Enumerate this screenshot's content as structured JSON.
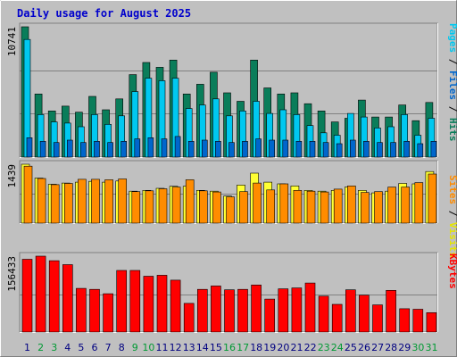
{
  "title": "Daily usage for August 2025",
  "colors": {
    "frame": "#c0c0c0",
    "panel": "#c0c0c0",
    "grid": "#808080",
    "title": "#0000cc",
    "hits": "#0a7d5a",
    "files": "#00c8f0",
    "pages": "#0066cc",
    "visits": "#ffff33",
    "sites": "#ff8c00",
    "kbytes": "#ff0000",
    "weekday": "#000080",
    "weekend": "#009933"
  },
  "chart_data": {
    "type": "bar",
    "categories": [
      "1",
      "2",
      "3",
      "4",
      "5",
      "6",
      "7",
      "8",
      "9",
      "10",
      "11",
      "12",
      "13",
      "14",
      "15",
      "16",
      "17",
      "18",
      "19",
      "20",
      "21",
      "22",
      "23",
      "24",
      "25",
      "26",
      "27",
      "28",
      "29",
      "30",
      "31"
    ],
    "weekend_days": [
      2,
      3,
      9,
      10,
      16,
      17,
      23,
      24,
      30,
      31
    ],
    "panels": [
      {
        "id": "traffic",
        "ymax_label": "10741",
        "ymax": 10741,
        "legend": [
          {
            "text": "Pages",
            "color": "#00c8f0"
          },
          {
            "text": " / ",
            "color": "#000000"
          },
          {
            "text": "Files",
            "color": "#0066cc"
          },
          {
            "text": " / ",
            "color": "#000000"
          },
          {
            "text": "Hits",
            "color": "#0a7d5a"
          }
        ],
        "series": [
          {
            "name": "Hits",
            "color": "#0a7d5a",
            "values": [
              10741,
              5200,
              3800,
              4200,
              3700,
              5000,
              3900,
              4800,
              6800,
              7800,
              7400,
              8000,
              5200,
              6000,
              7000,
              5300,
              4600,
              8000,
              5700,
              5200,
              5300,
              4400,
              3800,
              2900,
              3200,
              4700,
              3300,
              3300,
              4300,
              3000,
              4500
            ]
          },
          {
            "name": "Files",
            "color": "#00c8f0",
            "values": [
              9700,
              3500,
              2900,
              2800,
              2500,
              3500,
              2700,
              3400,
              5400,
              6500,
              6300,
              6500,
              4000,
              4300,
              4800,
              3400,
              3800,
              4600,
              3600,
              3900,
              3500,
              2600,
              2000,
              1800,
              3600,
              3300,
              2400,
              2500,
              3500,
              1800,
              3200
            ]
          },
          {
            "name": "Pages",
            "color": "#0066cc",
            "values": [
              1600,
              1300,
              1200,
              1400,
              1200,
              1300,
              1200,
              1300,
              1500,
              1600,
              1500,
              1700,
              1300,
              1400,
              1300,
              1200,
              1300,
              1500,
              1400,
              1400,
              1300,
              1300,
              1200,
              1100,
              1400,
              1300,
              1200,
              1200,
              1300,
              1100,
              1300
            ]
          }
        ]
      },
      {
        "id": "visits",
        "ymax_label": "1439",
        "ymax": 1439,
        "legend": [
          {
            "text": "Sites",
            "color": "#ff8c00"
          },
          {
            "text": " / ",
            "color": "#000000"
          },
          {
            "text": "Visits",
            "color": "#e6e600"
          }
        ],
        "series": [
          {
            "name": "Visits",
            "color": "#ffff33",
            "values": [
              1439,
              1100,
              950,
              980,
              1000,
              1020,
              1000,
              1030,
              780,
              800,
              850,
              900,
              900,
              800,
              780,
              660,
              930,
              1220,
              1000,
              960,
              910,
              800,
              780,
              800,
              880,
              800,
              740,
              780,
              970,
              960,
              1260
            ]
          },
          {
            "name": "Sites",
            "color": "#ff8c00",
            "values": [
              1390,
              1090,
              940,
              970,
              1070,
              1070,
              1060,
              1080,
              770,
              790,
              840,
              880,
              1060,
              790,
              760,
              640,
              770,
              980,
              810,
              960,
              800,
              780,
              760,
              830,
              910,
              750,
              770,
              880,
              880,
              990,
              1200
            ]
          }
        ]
      },
      {
        "id": "kbytes",
        "ymax_label": "156433",
        "ymax": 156433,
        "legend": [
          {
            "text": "KBytes",
            "color": "#ff0000"
          }
        ],
        "series": [
          {
            "name": "KBytes",
            "color": "#ff0000",
            "values": [
              150000,
              156433,
              147000,
              139000,
              90000,
              88000,
              79000,
              127000,
              127000,
              115000,
              117000,
              107000,
              59000,
              88000,
              95000,
              87000,
              88000,
              97000,
              68000,
              89000,
              91000,
              101000,
              74000,
              57000,
              87000,
              76000,
              56000,
              86000,
              48000,
              47000,
              40000
            ]
          }
        ]
      }
    ]
  }
}
